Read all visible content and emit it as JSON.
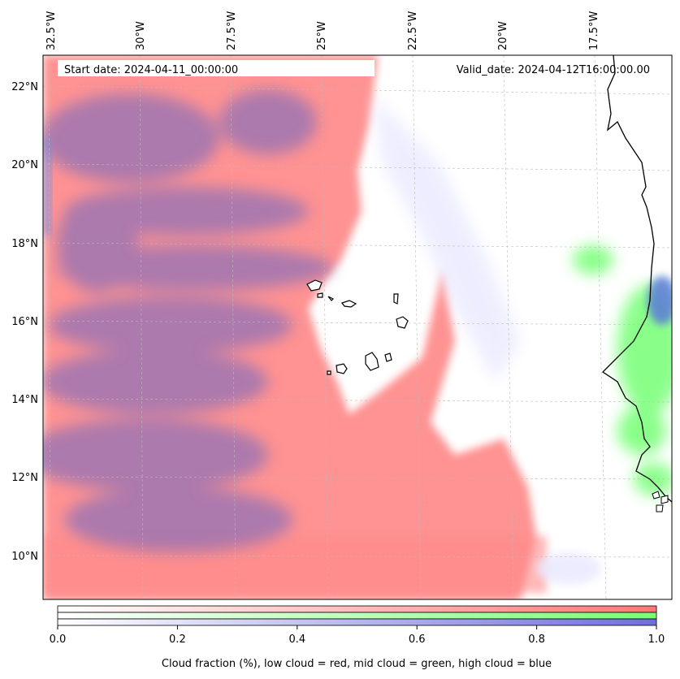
{
  "map": {
    "start_date_text": "Start date: 2024-04-11_00:00:00",
    "valid_date_text": "Valid_date: 2024-04-12T16:00:00.00",
    "lon_labels": [
      "32.5°W",
      "30°W",
      "27.5°W",
      "25°W",
      "22.5°W",
      "20°W",
      "17.5°W"
    ],
    "lat_labels": [
      "22°N",
      "20°N",
      "18°N",
      "16°N",
      "14°N",
      "12°N",
      "10°N"
    ],
    "colors": {
      "low_cloud": "#ff7a7a",
      "mid_cloud": "#7cff7c",
      "high_cloud": "#6f6fe0",
      "coastline": "#000000",
      "grid": "#bbbbbb"
    }
  },
  "colorbar": {
    "ticks": [
      "0.0",
      "0.2",
      "0.4",
      "0.6",
      "0.8",
      "1.0"
    ],
    "label": "Cloud fraction (%), low cloud = red, mid cloud = green, high cloud = blue",
    "bands": [
      "low",
      "mid",
      "high"
    ]
  }
}
